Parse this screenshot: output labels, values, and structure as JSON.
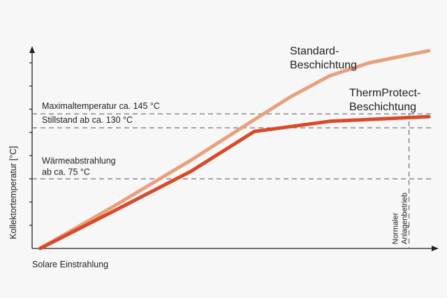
{
  "chart_data": {
    "type": "line",
    "title": "",
    "xlabel": "Solare Einstrahlung",
    "ylabel": "Kollektortemperatur [°C]",
    "xlim": [
      0,
      100
    ],
    "ylim": [
      0,
      200
    ],
    "x_marker": {
      "x": 95,
      "label_lines": [
        "Normaler",
        "Anlagenbetrieb"
      ]
    },
    "reference_lines": [
      {
        "name": "max",
        "y": 145,
        "label_lines": [
          "Maximaltemperatur ca. 145 °C"
        ]
      },
      {
        "name": "stillstand",
        "y": 130,
        "label_lines": [
          "Stillstand ab ca. 130 °C"
        ]
      },
      {
        "name": "waerme",
        "y": 75,
        "label_lines": [
          "Wärmeabstrahlung",
          "ab ca. 75 °C"
        ]
      }
    ],
    "series": [
      {
        "name": "Standard-Beschichtung",
        "label_lines": [
          "Standard-",
          "Beschichtung"
        ],
        "color": "#e8a07e",
        "x": [
          2,
          20,
          40,
          55,
          65,
          75,
          85,
          100
        ],
        "y": [
          0,
          44,
          95,
          136,
          163,
          186,
          200,
          213
        ]
      },
      {
        "name": "ThermProtect-Beschichtung",
        "label_lines": [
          "ThermProtect-",
          "Beschichtung"
        ],
        "color": "#d84a2a",
        "x": [
          2,
          20,
          40,
          56,
          75,
          100
        ],
        "y": [
          0,
          39,
          83,
          126,
          137,
          142
        ]
      }
    ]
  }
}
